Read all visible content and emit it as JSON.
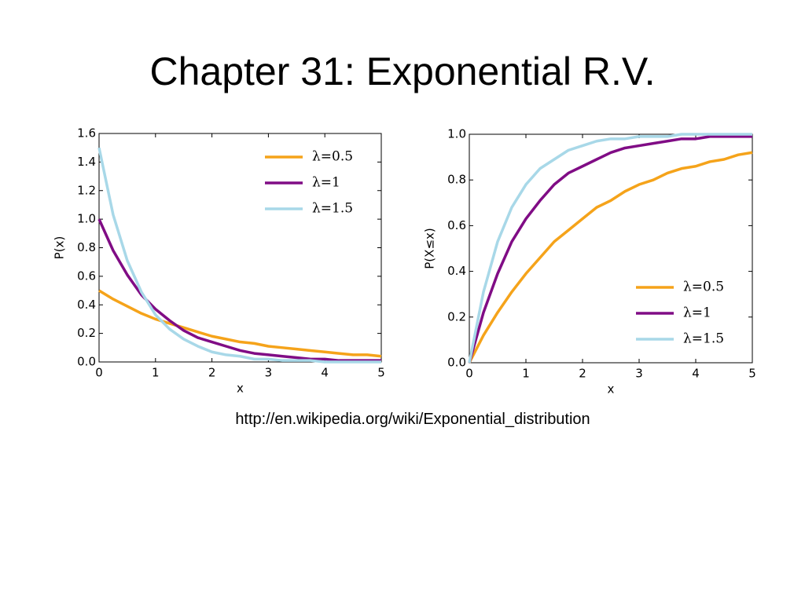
{
  "title": "Chapter 31: Exponential R.V.",
  "source": "http://en.wikipedia.org/wiki/Exponential_distribution",
  "chart_data": [
    {
      "type": "line",
      "x_label": "x",
      "y_label": "P(x)",
      "legend": "upper right",
      "x": [
        0,
        0.25,
        0.5,
        0.75,
        1,
        1.25,
        1.5,
        1.75,
        2,
        2.25,
        2.5,
        2.75,
        3,
        3.25,
        3.5,
        3.75,
        4,
        4.25,
        4.5,
        4.75,
        5
      ],
      "xlim": [
        0,
        5
      ],
      "xticks": [
        0,
        1,
        2,
        3,
        4,
        5
      ],
      "ylim": [
        0,
        1.6
      ],
      "yticks": [
        {
          "value": 0,
          "label": "0.0"
        },
        0.2,
        0.4,
        0.6,
        0.8,
        {
          "value": 1,
          "label": "1.0"
        },
        1.2,
        1.4,
        1.6
      ],
      "series": [
        {
          "name": "λ=0.5",
          "color": "#f5a31a",
          "values": [
            0.5,
            0.44,
            0.39,
            0.34,
            0.3,
            0.27,
            0.24,
            0.21,
            0.18,
            0.16,
            0.14,
            0.13,
            0.11,
            0.1,
            0.09,
            0.08,
            0.07,
            0.06,
            0.05,
            0.05,
            0.04
          ]
        },
        {
          "name": "λ=1",
          "color": "#800c85",
          "values": [
            1,
            0.78,
            0.61,
            0.47,
            0.37,
            0.29,
            0.22,
            0.17,
            0.14,
            0.11,
            0.08,
            0.06,
            0.05,
            0.04,
            0.03,
            0.02,
            0.02,
            0.01,
            0.01,
            0.01,
            0.01
          ]
        },
        {
          "name": "λ=1.5",
          "color": "#a8d8e8",
          "values": [
            1.5,
            1.03,
            0.71,
            0.49,
            0.33,
            0.23,
            0.16,
            0.11,
            0.07,
            0.05,
            0.04,
            0.02,
            0.02,
            0.01,
            0.01,
            0.01,
            0,
            0,
            0,
            0,
            0
          ]
        }
      ]
    },
    {
      "type": "line",
      "x_label": "x",
      "y_label": "P(X≤x)",
      "legend": "lower right",
      "x": [
        0,
        0.25,
        0.5,
        0.75,
        1,
        1.25,
        1.5,
        1.75,
        2,
        2.25,
        2.5,
        2.75,
        3,
        3.25,
        3.5,
        3.75,
        4,
        4.25,
        4.5,
        4.75,
        5
      ],
      "xlim": [
        0,
        5
      ],
      "xticks": [
        0,
        1,
        2,
        3,
        4,
        5
      ],
      "ylim": [
        0,
        1
      ],
      "yticks": [
        {
          "value": 0,
          "label": "0.0"
        },
        0.2,
        0.4,
        0.6,
        0.8,
        {
          "value": 1,
          "label": "1.0"
        }
      ],
      "series": [
        {
          "name": "λ=0.5",
          "color": "#f5a31a",
          "values": [
            0,
            0.12,
            0.22,
            0.31,
            0.39,
            0.46,
            0.53,
            0.58,
            0.63,
            0.68,
            0.71,
            0.75,
            0.78,
            0.8,
            0.83,
            0.85,
            0.86,
            0.88,
            0.89,
            0.91,
            0.92
          ]
        },
        {
          "name": "λ=1",
          "color": "#800c85",
          "values": [
            0,
            0.22,
            0.39,
            0.53,
            0.63,
            0.71,
            0.78,
            0.83,
            0.86,
            0.89,
            0.92,
            0.94,
            0.95,
            0.96,
            0.97,
            0.98,
            0.98,
            0.99,
            0.99,
            0.99,
            0.99
          ]
        },
        {
          "name": "λ=1.5",
          "color": "#a8d8e8",
          "values": [
            0,
            0.31,
            0.53,
            0.68,
            0.78,
            0.85,
            0.89,
            0.93,
            0.95,
            0.97,
            0.98,
            0.98,
            0.99,
            0.99,
            0.99,
            1,
            1,
            1,
            1,
            1,
            1
          ]
        }
      ]
    }
  ]
}
